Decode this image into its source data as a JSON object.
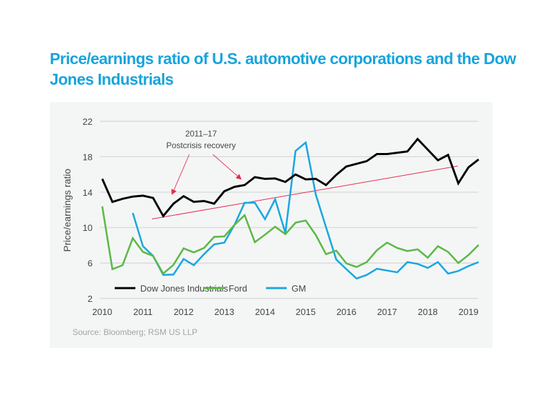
{
  "title": "Price/earnings ratio of U.S. automotive corporations and the Dow Jones Industrials",
  "source": "Source: Bloomberg; RSM US LLP",
  "chart_data": {
    "type": "line",
    "title": "Price/earnings ratio of U.S. automotive corporations and the Dow Jones Industrials",
    "xlabel": "",
    "ylabel": "Price/earnings ratio",
    "xlim": [
      2010,
      2019.25
    ],
    "ylim": [
      2,
      22
    ],
    "x_ticks": [
      "2010",
      "2011",
      "2012",
      "2013",
      "2014",
      "2015",
      "2016",
      "2017",
      "2018",
      "2019"
    ],
    "y_ticks": [
      "2",
      "6",
      "10",
      "14",
      "18",
      "22"
    ],
    "grid": "horizontal",
    "legend_position": "bottom",
    "x_step_years": 0.25,
    "series": [
      {
        "name": "Dow Jones Industrials",
        "color": "#000000",
        "x_start": 2010.0,
        "values": [
          15.5,
          12.9,
          13.25,
          13.5,
          13.6,
          13.35,
          11.3,
          12.7,
          13.55,
          12.9,
          13.0,
          12.7,
          14.1,
          14.6,
          14.8,
          15.7,
          15.5,
          15.55,
          15.15,
          16.0,
          15.45,
          15.5,
          14.8,
          15.95,
          16.9,
          17.2,
          17.5,
          18.3,
          18.3,
          18.45,
          18.6,
          20.0,
          18.8,
          17.6,
          18.2,
          15.0,
          16.8,
          17.7
        ]
      },
      {
        "name": "Ford",
        "color": "#5cb946",
        "x_start": 2010.0,
        "values": [
          12.4,
          5.3,
          5.75,
          8.8,
          7.25,
          6.8,
          4.8,
          5.8,
          7.65,
          7.2,
          7.7,
          8.95,
          9.0,
          10.3,
          11.4,
          8.35,
          9.2,
          10.1,
          9.25,
          10.55,
          10.8,
          9.15,
          7.0,
          7.4,
          5.95,
          5.55,
          6.1,
          7.45,
          8.3,
          7.7,
          7.35,
          7.55,
          6.6,
          7.9,
          7.25,
          6.0,
          6.9,
          8.05
        ]
      },
      {
        "name": "GM",
        "color": "#1ba7e0",
        "x_start": 2010.75,
        "values": [
          11.65,
          7.9,
          6.8,
          4.65,
          4.7,
          6.45,
          5.75,
          7.0,
          8.1,
          8.3,
          10.3,
          12.8,
          12.8,
          10.95,
          13.2,
          9.4,
          18.65,
          19.6,
          13.7,
          10.05,
          6.4,
          5.3,
          4.25,
          4.65,
          5.35,
          5.15,
          4.95,
          6.1,
          5.9,
          5.45,
          6.1,
          4.8,
          5.1,
          5.65,
          6.1
        ]
      }
    ],
    "annotations": [
      {
        "text_line1": "2011–17",
        "text_line2": "Postcrisis recovery",
        "color": "#e8294b",
        "trend_line": {
          "x": [
            2011.22,
            2018.74
          ],
          "y": [
            10.97,
            16.95
          ]
        }
      }
    ]
  }
}
